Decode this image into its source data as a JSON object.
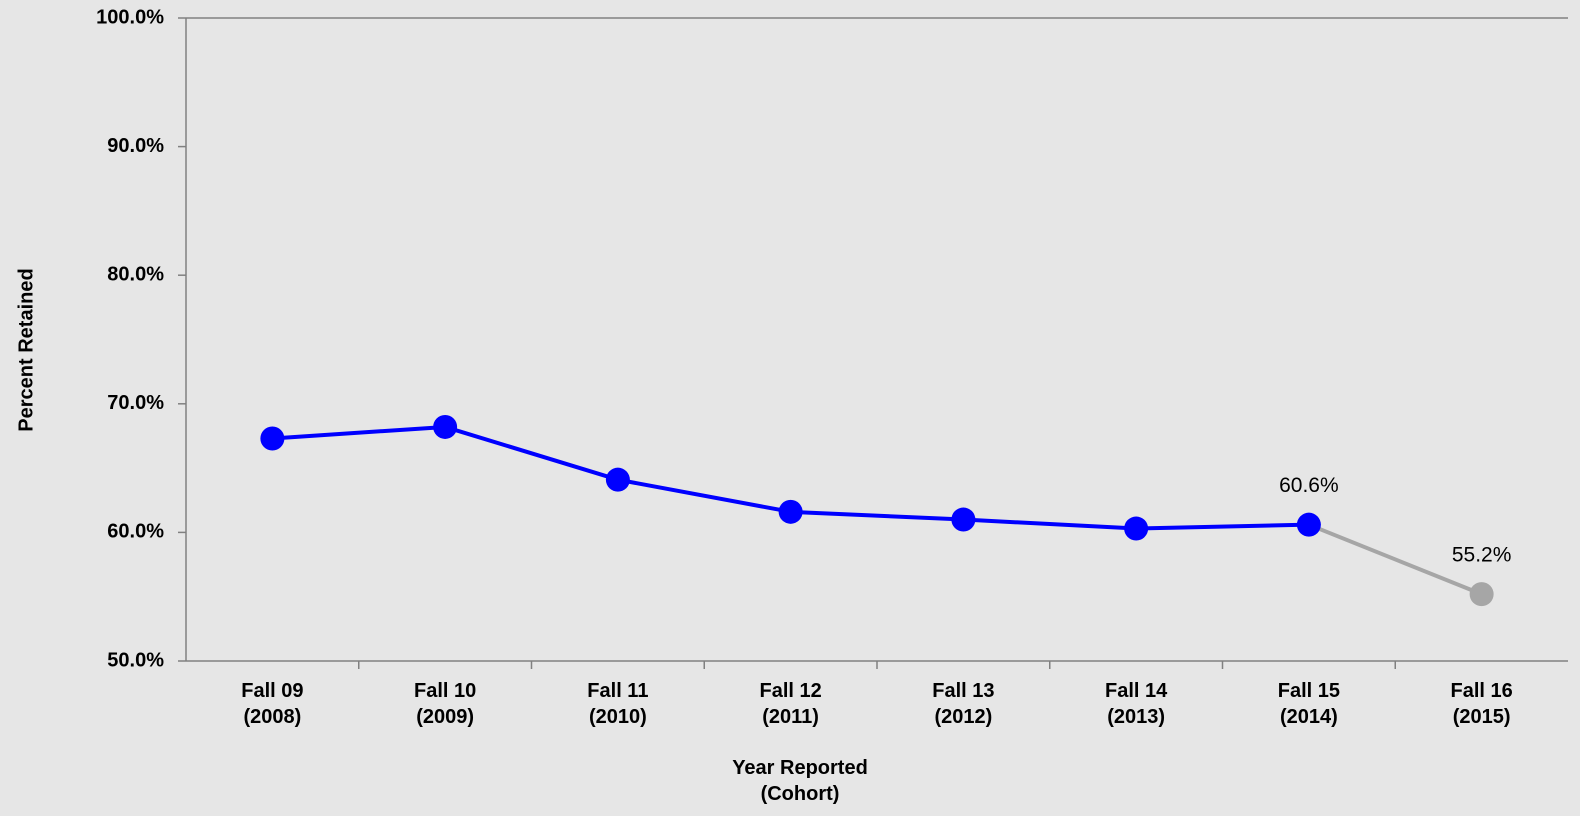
{
  "chart_data": {
    "type": "line",
    "x_label": "Year Reported\n(Cohort)",
    "y_label": "Percent Retained",
    "categories": [
      "Fall 09\n(2008)",
      "Fall 10\n(2009)",
      "Fall 11\n(2010)",
      "Fall 12\n(2011)",
      "Fall 13\n(2012)",
      "Fall 14\n(2013)",
      "Fall 15\n(2014)",
      "Fall 16\n(2015)"
    ],
    "series": [
      {
        "color": "#0000ff",
        "point_colors": [
          "#0000ff",
          "#0000ff",
          "#0000ff",
          "#0000ff",
          "#0000ff",
          "#0000ff",
          "#0000ff",
          "#a6a6a6"
        ],
        "values": [
          67.3,
          68.2,
          64.1,
          61.6,
          61.0,
          60.3,
          60.6,
          55.2
        ],
        "value_labels": [
          null,
          null,
          null,
          null,
          null,
          null,
          "60.6%",
          "55.2%"
        ]
      }
    ],
    "ylim": [
      50,
      100
    ],
    "yticks": [
      {
        "value": 50,
        "label": "50.0%"
      },
      {
        "value": 60,
        "label": "60.0%"
      },
      {
        "value": 70,
        "label": "70.0%"
      },
      {
        "value": 80,
        "label": "80.0%"
      },
      {
        "value": 90,
        "label": "90.0%"
      },
      {
        "value": 100,
        "label": "100.0%"
      }
    ],
    "grid": false
  }
}
